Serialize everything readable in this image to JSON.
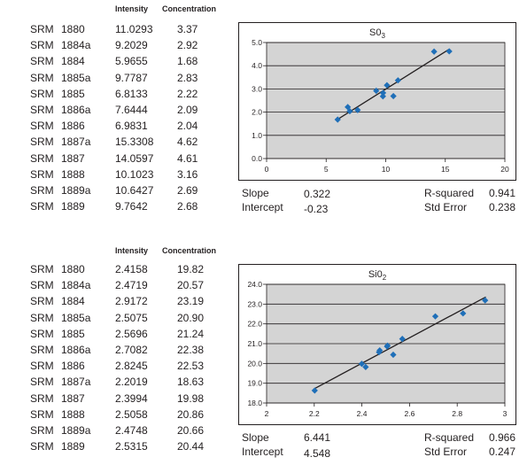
{
  "tables": [
    {
      "headers": [
        "Intensity",
        "Concentration"
      ],
      "rows": [
        [
          "SRM",
          "1880",
          "11.0293",
          "3.37"
        ],
        [
          "SRM",
          "1884a",
          "9.2029",
          "2.92"
        ],
        [
          "SRM",
          "1884",
          "5.9655",
          "1.68"
        ],
        [
          "SRM",
          "1885a",
          "9.7787",
          "2.83"
        ],
        [
          "SRM",
          "1885",
          "6.8133",
          "2.22"
        ],
        [
          "SRM",
          "1886a",
          "7.6444",
          "2.09"
        ],
        [
          "SRM",
          "1886",
          "6.9831",
          "2.04"
        ],
        [
          "SRM",
          "1887a",
          "15.3308",
          "4.62"
        ],
        [
          "SRM",
          "1887",
          "14.0597",
          "4.61"
        ],
        [
          "SRM",
          "1888",
          "10.1023",
          "3.16"
        ],
        [
          "SRM",
          "1889a",
          "10.6427",
          "2.69"
        ],
        [
          "SRM",
          "1889",
          "9.7642",
          "2.68"
        ]
      ]
    },
    {
      "headers": [
        "Intensity",
        "Concentration"
      ],
      "rows": [
        [
          "SRM",
          "1880",
          "2.4158",
          "19.82"
        ],
        [
          "SRM",
          "1884a",
          "2.4719",
          "20.57"
        ],
        [
          "SRM",
          "1884",
          "2.9172",
          "23.19"
        ],
        [
          "SRM",
          "1885a",
          "2.5075",
          "20.90"
        ],
        [
          "SRM",
          "1885",
          "2.5696",
          "21.24"
        ],
        [
          "SRM",
          "1886a",
          "2.7082",
          "22.38"
        ],
        [
          "SRM",
          "1886",
          "2.8245",
          "22.53"
        ],
        [
          "SRM",
          "1887a",
          "2.2019",
          "18.63"
        ],
        [
          "SRM",
          "1887",
          "2.3994",
          "19.98"
        ],
        [
          "SRM",
          "1888",
          "2.5058",
          "20.86"
        ],
        [
          "SRM",
          "1889a",
          "2.4748",
          "20.66"
        ],
        [
          "SRM",
          "1889",
          "2.5315",
          "20.44"
        ]
      ]
    }
  ],
  "stats": [
    {
      "slope_label": "Slope",
      "slope": "0.322",
      "intercept_label": "Intercept",
      "intercept": "-0.23",
      "r2_label": "R-squared",
      "r2": "0.941",
      "se_label": "Std Error",
      "se": "0.238"
    },
    {
      "slope_label": "Slope",
      "slope": "6.441",
      "intercept_label": "Intercept",
      "intercept": "4.548",
      "r2_label": "R-squared",
      "r2": "0.966",
      "se_label": "Std Error",
      "se": "0.247"
    }
  ],
  "chart_data": [
    {
      "type": "scatter",
      "title": "S0",
      "title_sub": "3",
      "xlabel": "",
      "ylabel": "",
      "xlim": [
        0,
        20
      ],
      "ylim": [
        0,
        5
      ],
      "xticks": [
        "0",
        "5",
        "10",
        "15",
        "20"
      ],
      "yticks": [
        "0.0",
        "1.0",
        "2.0",
        "3.0",
        "4.0",
        "5.0"
      ],
      "grid": "horizontal",
      "x": [
        11.0293,
        9.2029,
        5.9655,
        9.7787,
        6.8133,
        7.6444,
        6.9831,
        15.3308,
        14.0597,
        10.1023,
        10.6427,
        9.7642
      ],
      "y": [
        3.37,
        2.92,
        1.68,
        2.83,
        2.22,
        2.09,
        2.04,
        4.62,
        4.61,
        3.16,
        2.69,
        2.68
      ],
      "fit": {
        "x": [
          5.9,
          15.3
        ],
        "y": [
          1.67,
          4.7
        ]
      },
      "colors": {
        "marker": "#1f6fb8",
        "plot_bg": "#d4d4d4",
        "line": "#231f20"
      }
    },
    {
      "type": "scatter",
      "title": "Si0",
      "title_sub": "2",
      "xlabel": "",
      "ylabel": "",
      "xlim": [
        2,
        3
      ],
      "ylim": [
        18,
        24
      ],
      "xticks": [
        "2",
        "2.2",
        "2.4",
        "2.6",
        "2.8",
        "3"
      ],
      "yticks": [
        "18.0",
        "19.0",
        "20.0",
        "21.0",
        "22.0",
        "23.0",
        "24.0"
      ],
      "grid": "horizontal",
      "x": [
        2.4158,
        2.4719,
        2.9172,
        2.5075,
        2.5696,
        2.7082,
        2.8245,
        2.2019,
        2.3994,
        2.5058,
        2.4748,
        2.5315
      ],
      "y": [
        19.82,
        20.57,
        23.19,
        20.9,
        21.24,
        22.38,
        22.53,
        18.63,
        19.98,
        20.86,
        20.66,
        20.44
      ],
      "fit": {
        "x": [
          2.2,
          2.92
        ],
        "y": [
          18.72,
          23.36
        ]
      },
      "colors": {
        "marker": "#1f6fb8",
        "plot_bg": "#d4d4d4",
        "line": "#231f20"
      }
    }
  ]
}
